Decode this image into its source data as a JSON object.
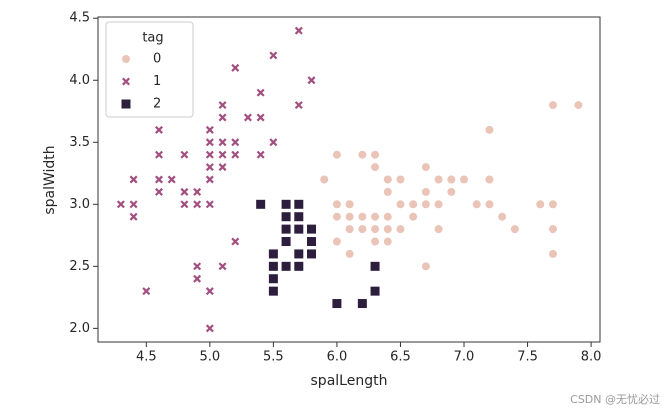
{
  "chart_data": {
    "type": "scatter",
    "xlabel": "spalLength",
    "ylabel": "spalWidth",
    "xlim": [
      4.12,
      8.07
    ],
    "ylim": [
      1.89,
      4.51
    ],
    "xticks": [
      4.5,
      {
        "value": 5,
        "label": "5.0"
      },
      5.5,
      {
        "value": 6,
        "label": "6.0"
      },
      6.5,
      {
        "value": 7,
        "label": "7.0"
      },
      7.5,
      {
        "value": 8,
        "label": "8.0"
      }
    ],
    "yticks": [
      {
        "value": 2,
        "label": "2.0"
      },
      2.5,
      {
        "value": 3,
        "label": "3.0"
      },
      3.5,
      {
        "value": 4,
        "label": "4.0"
      },
      4.5
    ],
    "grid": false,
    "legend_title": "tag",
    "legend_position": "upper-left",
    "series": [
      {
        "name": "0",
        "color": "#ebc4b8",
        "marker": "circle",
        "x": [
          5.9,
          6.0,
          6.0,
          6.0,
          6.0,
          6.1,
          6.1,
          6.1,
          6.1,
          6.2,
          6.2,
          6.2,
          6.3,
          6.3,
          6.3,
          6.3,
          6.3,
          6.4,
          6.4,
          6.4,
          6.4,
          6.4,
          6.5,
          6.5,
          6.5,
          6.6,
          6.6,
          6.7,
          6.7,
          6.7,
          6.7,
          6.8,
          6.8,
          6.8,
          6.9,
          6.9,
          7.0,
          7.1,
          7.2,
          7.2,
          7.2,
          7.3,
          7.4,
          7.6,
          7.7,
          7.7,
          7.7,
          7.7,
          7.9
        ],
        "values": [
          3.2,
          3.4,
          3.0,
          2.9,
          2.7,
          3.0,
          2.9,
          2.8,
          2.6,
          3.4,
          2.9,
          2.8,
          3.4,
          3.3,
          2.9,
          2.8,
          2.7,
          3.2,
          3.1,
          2.9,
          2.8,
          2.7,
          3.2,
          3.0,
          2.8,
          3.0,
          2.9,
          3.3,
          3.1,
          3.0,
          2.5,
          3.2,
          3.0,
          2.8,
          3.2,
          3.1,
          3.2,
          3.0,
          3.6,
          3.2,
          3.0,
          2.9,
          2.8,
          3.0,
          3.8,
          3.0,
          2.8,
          2.6,
          3.8
        ]
      },
      {
        "name": "1",
        "color": "#a24f80",
        "marker": "x",
        "x": [
          4.3,
          4.4,
          4.4,
          4.4,
          4.5,
          4.6,
          4.6,
          4.6,
          4.6,
          4.7,
          4.8,
          4.8,
          4.8,
          4.9,
          4.9,
          4.9,
          4.9,
          5.0,
          5.0,
          5.0,
          5.0,
          5.0,
          5.0,
          5.0,
          5.0,
          5.1,
          5.1,
          5.1,
          5.1,
          5.1,
          5.1,
          5.2,
          5.2,
          5.2,
          5.2,
          5.3,
          5.4,
          5.4,
          5.4,
          5.5,
          5.5,
          5.7,
          5.7,
          5.8
        ],
        "values": [
          3.0,
          3.2,
          3.0,
          2.9,
          2.3,
          3.6,
          3.4,
          3.2,
          3.1,
          3.2,
          3.4,
          3.1,
          3.0,
          3.1,
          3.0,
          2.5,
          2.4,
          3.6,
          3.5,
          3.4,
          3.3,
          3.2,
          3.0,
          2.3,
          2.0,
          3.8,
          3.7,
          3.5,
          3.4,
          3.3,
          2.5,
          4.1,
          3.5,
          3.4,
          2.7,
          3.7,
          3.9,
          3.7,
          3.4,
          4.2,
          3.5,
          4.4,
          3.8,
          4.0
        ]
      },
      {
        "name": "2",
        "color": "#2d1e3e",
        "marker": "square",
        "x": [
          5.4,
          5.5,
          5.5,
          5.5,
          5.5,
          5.6,
          5.6,
          5.6,
          5.6,
          5.6,
          5.7,
          5.7,
          5.7,
          5.7,
          5.7,
          5.8,
          5.8,
          5.8,
          6.0,
          6.2,
          6.3,
          6.3
        ],
        "values": [
          3.0,
          2.6,
          2.5,
          2.4,
          2.3,
          3.0,
          2.9,
          2.8,
          2.7,
          2.5,
          3.0,
          2.9,
          2.8,
          2.6,
          2.5,
          2.8,
          2.7,
          2.6,
          2.2,
          2.2,
          2.5,
          2.3
        ]
      }
    ]
  },
  "watermark": "CSDN @无忧必过"
}
